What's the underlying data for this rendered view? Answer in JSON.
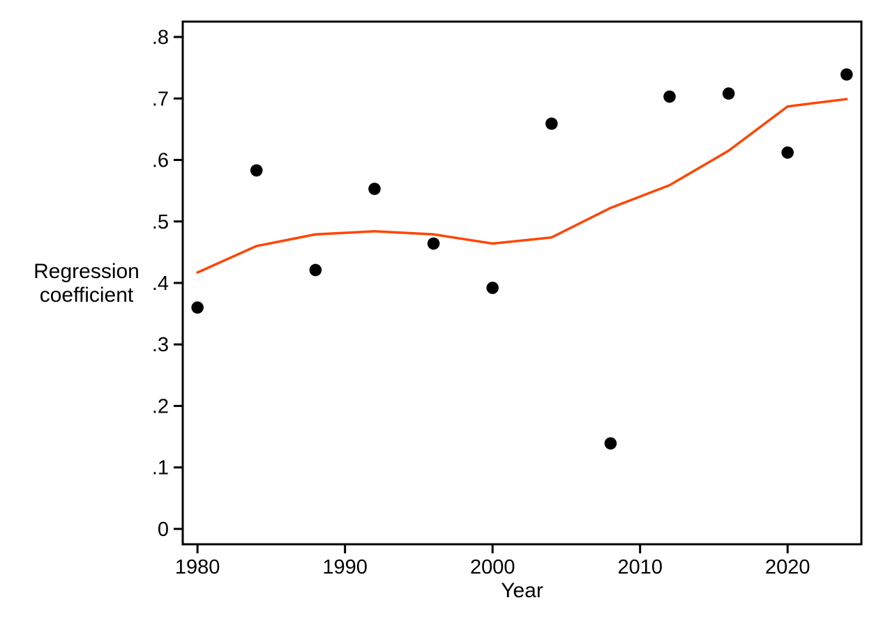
{
  "chart_data": {
    "type": "scatter",
    "title": "",
    "xlabel": "Year",
    "ylabel": "Regression coefficient",
    "ylabel_lines": [
      "Regression",
      "coefficient"
    ],
    "x": [
      1980,
      1984,
      1988,
      1992,
      1996,
      2000,
      2004,
      2008,
      2012,
      2016,
      2020,
      2024
    ],
    "series": [
      {
        "name": "regression-coefficient-points",
        "type": "scatter",
        "values": [
          0.36,
          0.583,
          0.421,
          0.553,
          0.464,
          0.392,
          0.659,
          0.139,
          0.703,
          0.708,
          0.612,
          0.739
        ]
      },
      {
        "name": "lowess-smooth-line",
        "type": "line",
        "values": [
          0.417,
          0.46,
          0.479,
          0.484,
          0.479,
          0.464,
          0.474,
          0.522,
          0.559,
          0.615,
          0.687,
          0.699
        ]
      }
    ],
    "x_ticks": [
      1980,
      1990,
      2000,
      2010,
      2020
    ],
    "x_tick_labels": [
      "1980",
      "1990",
      "2000",
      "2010",
      "2020"
    ],
    "y_ticks": [
      0,
      0.1,
      0.2,
      0.3,
      0.4,
      0.5,
      0.6,
      0.7,
      0.8
    ],
    "y_tick_labels": [
      "0",
      ".1",
      ".2",
      ".3",
      ".4",
      ".5",
      ".6",
      ".7",
      ".8"
    ],
    "xlim": [
      1979,
      2025
    ],
    "ylim": [
      -0.025,
      0.825
    ],
    "grid": false,
    "legend": "none",
    "colors": {
      "marker": "#000000",
      "lowess_line": "#ff4500",
      "axis": "#000000",
      "background": "#ffffff"
    }
  }
}
